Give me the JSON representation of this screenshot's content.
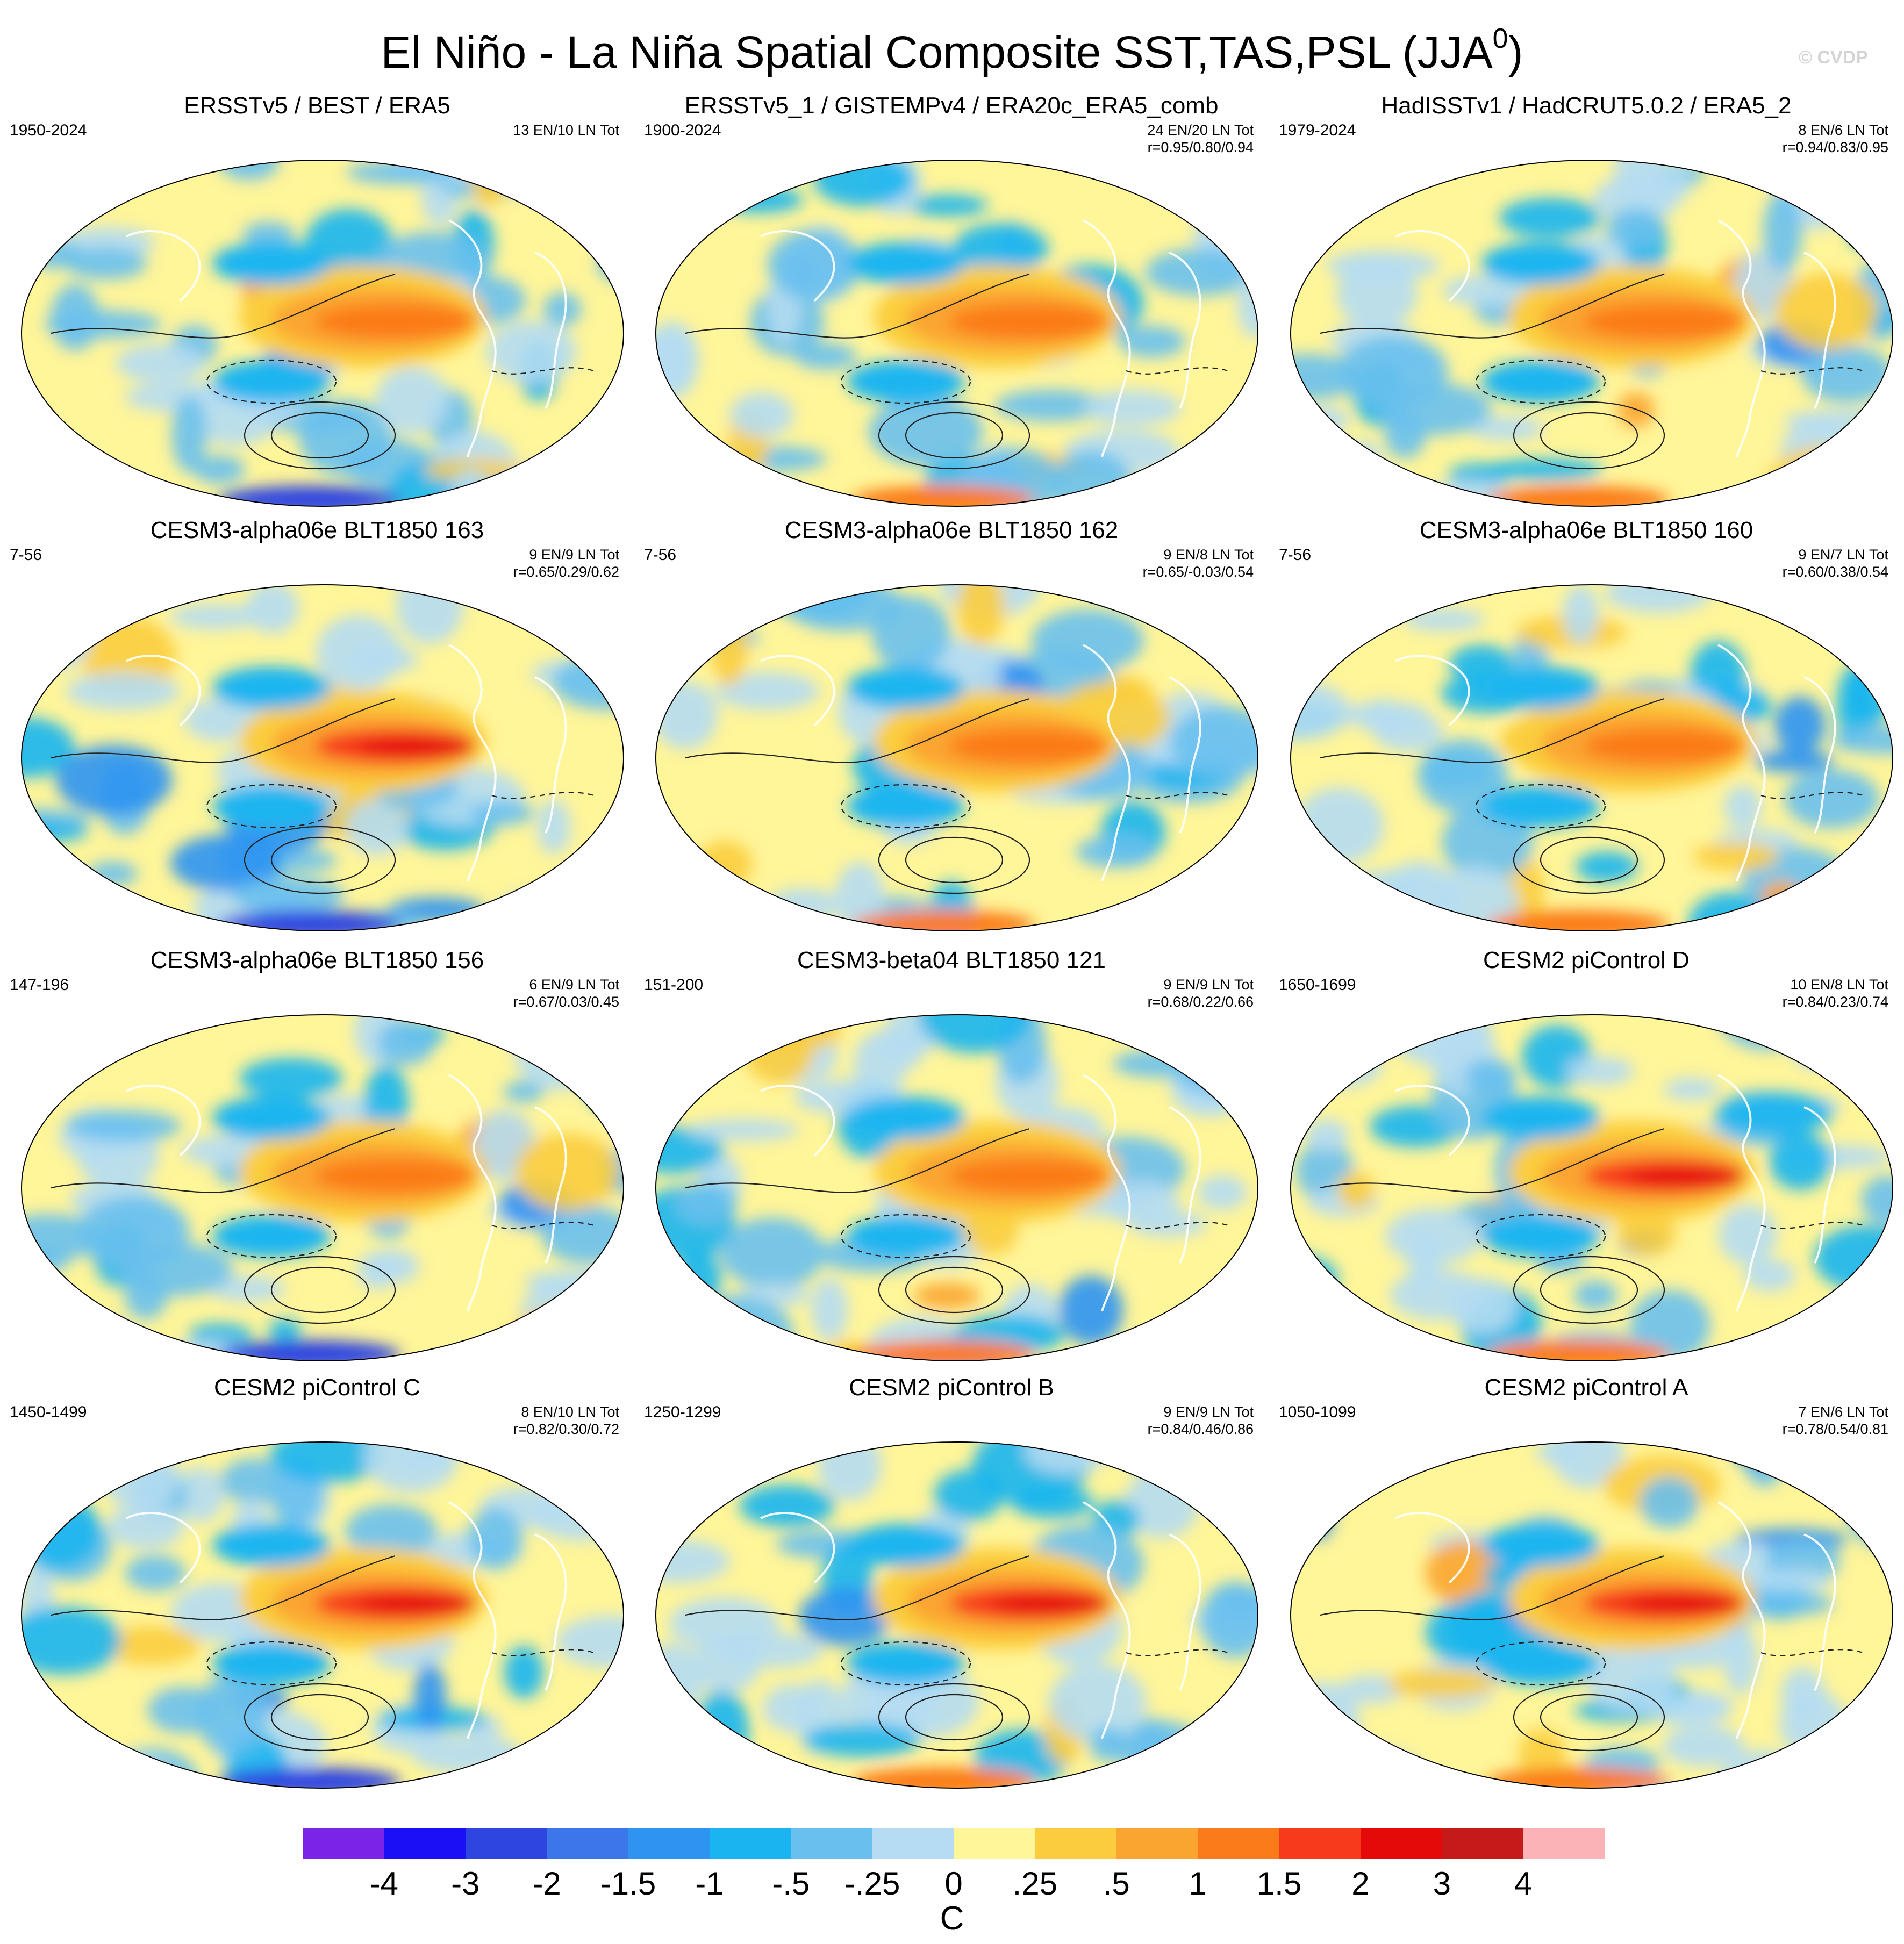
{
  "figure": {
    "title": "El Niño - La Niña Spatial Composite SST,TAS,PSL (JJA",
    "title_sup": "0",
    "title_close": ")",
    "credit": "© CVDP"
  },
  "panels": [
    {
      "title": "ERSSTv5 / BEST / ERA5",
      "years": "1950-2024",
      "counts": "13 EN/10 LN Tot",
      "corr": ""
    },
    {
      "title": "ERSSTv5_1 / GISTEMPv4 / ERA20c_ERA5_comb",
      "years": "1900-2024",
      "counts": "24 EN/20 LN Tot",
      "corr": "r=0.95/0.80/0.94"
    },
    {
      "title": "HadISSTv1 / HadCRUT5.0.2 / ERA5_2",
      "years": "1979-2024",
      "counts": "8 EN/6 LN Tot",
      "corr": "r=0.94/0.83/0.95"
    },
    {
      "title": "CESM3-alpha06e BLT1850 163",
      "years": "7-56",
      "counts": "9 EN/9 LN Tot",
      "corr": "r=0.65/0.29/0.62"
    },
    {
      "title": "CESM3-alpha06e BLT1850 162",
      "years": "7-56",
      "counts": "9 EN/8 LN Tot",
      "corr": "r=0.65/-0.03/0.54"
    },
    {
      "title": "CESM3-alpha06e BLT1850 160",
      "years": "7-56",
      "counts": "9 EN/7 LN Tot",
      "corr": "r=0.60/0.38/0.54"
    },
    {
      "title": "CESM3-alpha06e BLT1850 156",
      "years": "147-196",
      "counts": "6 EN/9 LN Tot",
      "corr": "r=0.67/0.03/0.45"
    },
    {
      "title": "CESM3-beta04 BLT1850 121",
      "years": "151-200",
      "counts": "9 EN/9 LN Tot",
      "corr": "r=0.68/0.22/0.66"
    },
    {
      "title": "CESM2 piControl D",
      "years": "1650-1699",
      "counts": "10 EN/8 LN Tot",
      "corr": "r=0.84/0.23/0.74"
    },
    {
      "title": "CESM2 piControl C",
      "years": "1450-1499",
      "counts": "8 EN/10 LN Tot",
      "corr": "r=0.82/0.30/0.72"
    },
    {
      "title": "CESM2 piControl B",
      "years": "1250-1299",
      "counts": "9 EN/9 LN Tot",
      "corr": "r=0.84/0.46/0.86"
    },
    {
      "title": "CESM2 piControl A",
      "years": "1050-1099",
      "counts": "7 EN/6 LN Tot",
      "corr": "r=0.78/0.54/0.81"
    }
  ],
  "colorbar": {
    "colors": [
      "#7b24e8",
      "#1a0ff5",
      "#2f45e0",
      "#3d76e8",
      "#2d94f2",
      "#1ab5f0",
      "#69c0ee",
      "#b5dcf2",
      "#fff599",
      "#fbcd3e",
      "#fba531",
      "#fb7a19",
      "#f73a1c",
      "#e40a0a",
      "#c41a1a",
      "#fbb3b8"
    ],
    "labels": [
      "-4",
      "-3",
      "-2",
      "-1.5",
      "-1",
      "-.5",
      "-.25",
      "0",
      ".25",
      ".5",
      "1",
      "1.5",
      "2",
      "3",
      "4"
    ],
    "unit": "C"
  }
}
